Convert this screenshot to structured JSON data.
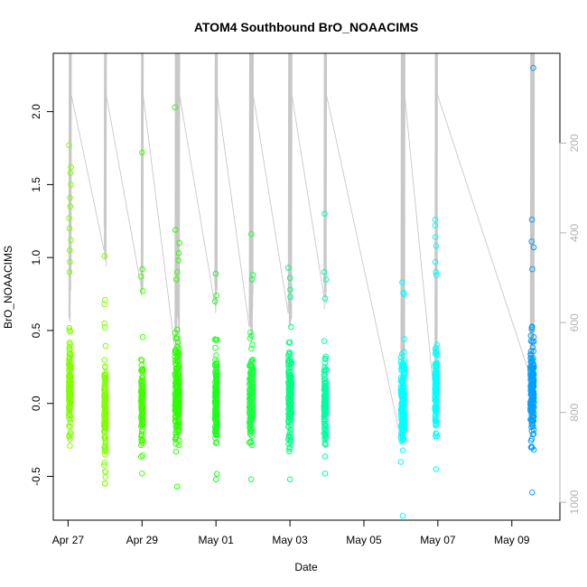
{
  "chart_data": {
    "type": "scatter",
    "title": "ATOM4 Southbound BrO_NOAACIMS",
    "xlabel": "Date",
    "ylabel": "BrO_NOAACIMS",
    "x_unit": "days since Apr 27",
    "xlim": [
      -0.4,
      13.3
    ],
    "ylim": [
      -0.8,
      2.4
    ],
    "x_ticks": [
      {
        "value": 0,
        "label": "Apr 27"
      },
      {
        "value": 2,
        "label": "Apr 29"
      },
      {
        "value": 4,
        "label": "May 01"
      },
      {
        "value": 6,
        "label": "May 03"
      },
      {
        "value": 8,
        "label": "May 05"
      },
      {
        "value": 10,
        "label": "May 07"
      },
      {
        "value": 12,
        "label": "May 09"
      }
    ],
    "y_ticks": [
      {
        "value": -0.5,
        "label": "-0.5"
      },
      {
        "value": 0.0,
        "label": "0.0"
      },
      {
        "value": 0.5,
        "label": "0.5"
      },
      {
        "value": 1.0,
        "label": "1.0"
      },
      {
        "value": 1.5,
        "label": "1.5"
      },
      {
        "value": 2.0,
        "label": "2.0"
      }
    ],
    "secondary_axis": {
      "label": "",
      "color": "#b3b3b3",
      "ylim": [
        0,
        1040
      ],
      "reversed": true,
      "ticks": [
        {
          "value": 200,
          "label": "200"
        },
        {
          "value": 400,
          "label": "400"
        },
        {
          "value": 600,
          "label": "600"
        },
        {
          "value": 800,
          "label": "800"
        },
        {
          "value": 1000,
          "label": "1000"
        }
      ]
    },
    "flights": [
      {
        "x": 0.05,
        "width": 0.06,
        "color": "#80ff00",
        "mean": 0.12,
        "sd": 0.17,
        "min": -0.29,
        "max": 1.77,
        "outliers": [
          1.77,
          1.62,
          1.58,
          1.5,
          1.41,
          1.35,
          1.27,
          1.2,
          1.12,
          1.05,
          0.97,
          0.9
        ],
        "profile_low": 600,
        "profile_high": 30
      },
      {
        "x": 1.0,
        "width": 0.05,
        "color": "#80ff00",
        "mean": -0.05,
        "sd": 0.18,
        "min": -0.55,
        "max": 1.01,
        "outliers": [
          1.01,
          0.71,
          0.68,
          0.55,
          0.52
        ],
        "profile_low": 480,
        "profile_high": 30
      },
      {
        "x": 2.0,
        "width": 0.05,
        "color": "#40ff00",
        "mean": 0.02,
        "sd": 0.16,
        "min": -0.48,
        "max": 1.72,
        "outliers": [
          1.72,
          0.92,
          0.87,
          0.77
        ],
        "profile_low": 560,
        "profile_high": 30
      },
      {
        "x": 2.95,
        "width": 0.12,
        "color": "#2bff00",
        "mean": 0.08,
        "sd": 0.17,
        "min": -0.57,
        "max": 2.03,
        "outliers": [
          2.03,
          1.19,
          1.1,
          1.03,
          0.98,
          0.9,
          0.85
        ],
        "profile_low": 700,
        "profile_high": 30
      },
      {
        "x": 4.0,
        "width": 0.06,
        "color": "#1aff1a",
        "mean": 0.03,
        "sd": 0.16,
        "min": -0.52,
        "max": 0.89,
        "outliers": [
          0.89,
          0.74,
          0.7
        ],
        "profile_low": 600,
        "profile_high": 30
      },
      {
        "x": 4.95,
        "width": 0.1,
        "color": "#1aff40",
        "mean": 0.05,
        "sd": 0.16,
        "min": -0.52,
        "max": 1.16,
        "outliers": [
          1.16,
          0.88,
          0.85
        ],
        "profile_low": 650,
        "profile_high": 30
      },
      {
        "x": 6.0,
        "width": 0.09,
        "color": "#00ff80",
        "mean": 0.03,
        "sd": 0.16,
        "min": -0.52,
        "max": 0.93,
        "outliers": [
          0.93,
          0.86,
          0.78,
          0.73
        ],
        "profile_low": 620,
        "profile_high": 30
      },
      {
        "x": 6.95,
        "width": 0.06,
        "color": "#00ffa0",
        "mean": 0.0,
        "sd": 0.15,
        "min": -0.48,
        "max": 1.3,
        "outliers": [
          1.3,
          0.9,
          0.85,
          0.72
        ],
        "profile_low": 580,
        "profile_high": 30
      },
      {
        "x": 9.05,
        "width": 0.1,
        "color": "#00ffff",
        "mean": 0.02,
        "sd": 0.16,
        "min": -0.77,
        "max": 0.83,
        "outliers": [
          0.83,
          0.76,
          0.75
        ],
        "profile_low": 900,
        "profile_high": 30
      },
      {
        "x": 9.95,
        "width": 0.06,
        "color": "#00ffff",
        "mean": 0.06,
        "sd": 0.16,
        "min": -0.45,
        "max": 1.26,
        "outliers": [
          1.26,
          1.22,
          1.14,
          1.08,
          0.97,
          0.9,
          0.88
        ],
        "profile_low": 820,
        "profile_high": 30
      },
      {
        "x": 12.55,
        "width": 0.1,
        "color": "#00a0ff",
        "mean": 0.09,
        "sd": 0.18,
        "min": -0.61,
        "max": 2.3,
        "outliers": [
          2.3,
          1.26,
          1.11,
          1.07,
          0.92
        ],
        "profile_low": 760,
        "profile_high": 30
      }
    ]
  }
}
